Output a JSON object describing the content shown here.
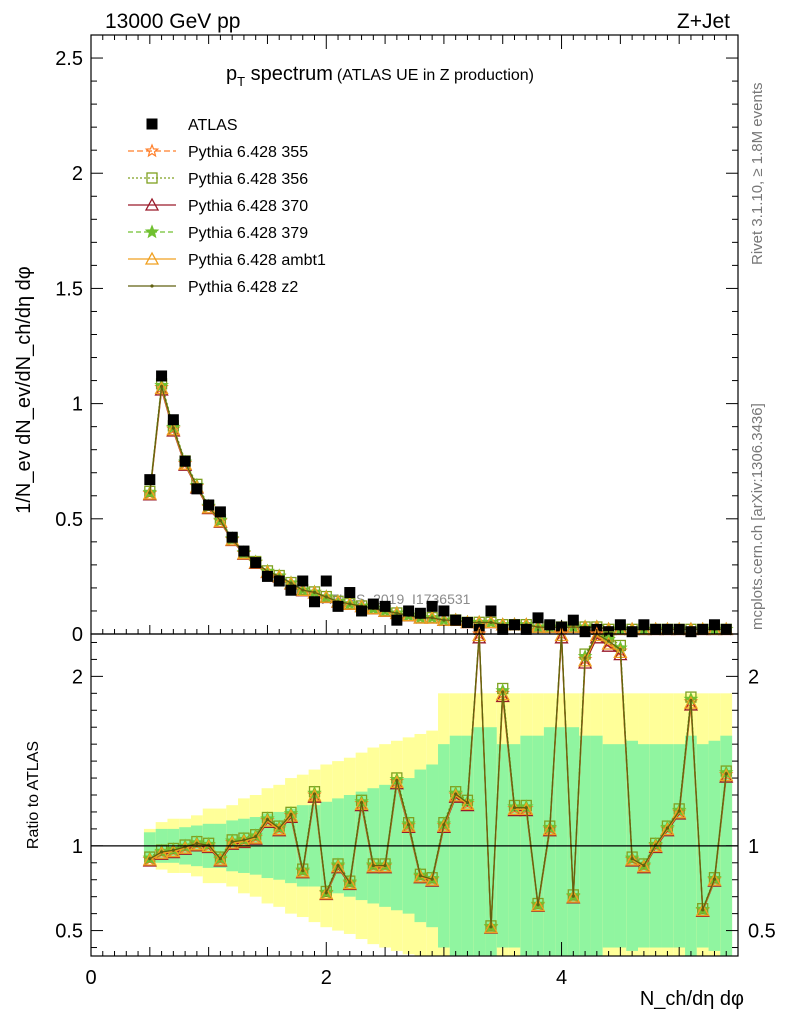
{
  "header": {
    "left": "13000 GeV pp",
    "right": "Z+Jet"
  },
  "side_text": {
    "top": "Rivet 3.1.10, ≥ 1.8M events",
    "bottom": "mcplots.cern.ch [arXiv:1306.3436]"
  },
  "watermark": "ATLAS_2019_I1736531",
  "chart_data": [
    {
      "type": "line",
      "title_main": "p",
      "title_sub": "T",
      "title_rest": " spectrum",
      "title_note": "(ATLAS UE in Z production)",
      "ylabel": "1/N_ev dN_ev/dN_ch/dη dφ",
      "xlim": [
        0,
        5.5
      ],
      "ylim": [
        0,
        2.6
      ],
      "yticks": [
        "0",
        "0.5",
        "1",
        "1.5",
        "2",
        "2.5"
      ],
      "x": [
        0.5,
        0.6,
        0.7,
        0.8,
        0.9,
        1.0,
        1.1,
        1.2,
        1.3,
        1.4,
        1.5,
        1.6,
        1.7,
        1.8,
        1.9,
        2.0,
        2.1,
        2.2,
        2.3,
        2.4,
        2.5,
        2.6,
        2.7,
        2.8,
        2.9,
        3.0,
        3.1,
        3.2,
        3.3,
        3.4,
        3.5,
        3.6,
        3.7,
        3.8,
        3.9,
        4.0,
        4.1,
        4.2,
        4.3,
        4.4,
        4.5,
        4.6,
        4.7,
        4.8,
        4.9,
        5.0,
        5.1,
        5.2,
        5.3,
        5.4
      ],
      "data_values": [
        0.67,
        1.12,
        0.93,
        0.75,
        0.63,
        0.56,
        0.53,
        0.42,
        0.36,
        0.31,
        0.25,
        0.23,
        0.19,
        0.23,
        0.14,
        0.23,
        0.12,
        0.18,
        0.1,
        0.13,
        0.12,
        0.06,
        0.1,
        0.09,
        0.12,
        0.1,
        0.06,
        0.05,
        0.02,
        0.1,
        0.02,
        0.04,
        0.02,
        0.07,
        0.04,
        0.03,
        0.06,
        0.01,
        0.02,
        0.01,
        0.04,
        0.01,
        0.04,
        0.02,
        0.02,
        0.02,
        0.01,
        0.02,
        0.04,
        0.02
      ],
      "mc_values": [
        0.61,
        1.07,
        0.89,
        0.74,
        0.64,
        0.55,
        0.49,
        0.41,
        0.35,
        0.31,
        0.27,
        0.25,
        0.22,
        0.19,
        0.18,
        0.16,
        0.14,
        0.13,
        0.12,
        0.11,
        0.1,
        0.09,
        0.08,
        0.07,
        0.07,
        0.06,
        0.06,
        0.05,
        0.05,
        0.05,
        0.04,
        0.04,
        0.04,
        0.03,
        0.03,
        0.03,
        0.03,
        0.03,
        0.03,
        0.02,
        0.02,
        0.02,
        0.02,
        0.02,
        0.02,
        0.02,
        0.02,
        0.02,
        0.02,
        0.02
      ],
      "legend": [
        {
          "label": "ATLAS",
          "color": "#000000",
          "marker": "square-filled",
          "dash": ""
        },
        {
          "label": "Pythia 6.428 355",
          "color": "#ff7f2a",
          "marker": "star-open",
          "dash": "6,3"
        },
        {
          "label": "Pythia 6.428 356",
          "color": "#7fa020",
          "marker": "square-open",
          "dash": "2,2"
        },
        {
          "label": "Pythia 6.428 370",
          "color": "#9a1a2a",
          "marker": "triangle-open",
          "dash": ""
        },
        {
          "label": "Pythia 6.428 379",
          "color": "#70c030",
          "marker": "star-filled",
          "dash": "5,3"
        },
        {
          "label": "Pythia 6.428 ambt1",
          "color": "#f0a020",
          "marker": "triangle-open",
          "dash": ""
        },
        {
          "label": "Pythia 6.428 z2",
          "color": "#606010",
          "marker": "dot",
          "dash": ""
        }
      ]
    },
    {
      "type": "line",
      "ylabel": "Ratio to ATLAS",
      "xlabel": "N_ch/dη dφ",
      "xlim": [
        0,
        5.5
      ],
      "ylim": [
        0.35,
        2.25
      ],
      "yticks": [
        "0.5",
        "1",
        "2"
      ],
      "xticks": [
        "0",
        "2",
        "4"
      ],
      "x": [
        0.5,
        0.6,
        0.7,
        0.8,
        0.9,
        1.0,
        1.1,
        1.2,
        1.3,
        1.4,
        1.5,
        1.6,
        1.7,
        1.8,
        1.9,
        2.0,
        2.1,
        2.2,
        2.3,
        2.4,
        2.5,
        2.6,
        2.7,
        2.8,
        2.9,
        3.0,
        3.1,
        3.2,
        3.3,
        3.4,
        3.5,
        3.6,
        3.7,
        3.8,
        3.9,
        4.0,
        4.1,
        4.2,
        4.3,
        4.4,
        4.5,
        4.6,
        4.7,
        4.8,
        4.9,
        5.0,
        5.1,
        5.2,
        5.3,
        5.4
      ],
      "ratio_values": [
        0.92,
        0.96,
        0.97,
        0.99,
        1.01,
        1.0,
        0.92,
        1.02,
        1.03,
        1.05,
        1.15,
        1.1,
        1.18,
        0.85,
        1.3,
        0.72,
        0.88,
        0.78,
        1.25,
        0.88,
        0.88,
        1.38,
        1.12,
        0.82,
        0.8,
        1.12,
        1.3,
        1.25,
        2.25,
        0.52,
        1.9,
        1.22,
        1.22,
        0.65,
        1.1,
        2.25,
        0.7,
        2.1,
        2.25,
        2.2,
        2.15,
        0.92,
        0.88,
        1.0,
        1.1,
        1.2,
        1.85,
        0.62,
        0.8,
        1.42
      ],
      "band_inner": [
        0.08,
        0.1,
        0.1,
        0.11,
        0.12,
        0.13,
        0.13,
        0.15,
        0.16,
        0.17,
        0.19,
        0.2,
        0.22,
        0.24,
        0.24,
        0.26,
        0.28,
        0.3,
        0.32,
        0.34,
        0.36,
        0.38,
        0.4,
        0.45,
        0.48,
        0.6,
        0.65,
        0.65,
        0.7,
        0.7,
        0.6,
        0.6,
        0.65,
        0.65,
        0.7,
        0.7,
        0.7,
        0.65,
        0.65,
        0.6,
        0.6,
        0.62,
        0.6,
        0.6,
        0.6,
        0.6,
        0.65,
        0.6,
        0.62,
        0.65
      ],
      "band_outer": [
        0.1,
        0.14,
        0.16,
        0.16,
        0.18,
        0.22,
        0.22,
        0.24,
        0.28,
        0.3,
        0.34,
        0.36,
        0.4,
        0.42,
        0.45,
        0.48,
        0.5,
        0.52,
        0.55,
        0.58,
        0.6,
        0.62,
        0.64,
        0.66,
        0.68,
        0.9,
        0.9,
        0.9,
        0.9,
        0.9,
        0.9,
        0.9,
        0.9,
        0.9,
        0.9,
        0.9,
        0.9,
        0.9,
        0.9,
        0.9,
        0.9,
        0.9,
        0.9,
        0.9,
        0.9,
        0.9,
        0.9,
        0.9,
        0.9,
        0.9
      ],
      "band_colors": {
        "inner": "#90f5a0",
        "outer": "#ffff99"
      }
    }
  ]
}
